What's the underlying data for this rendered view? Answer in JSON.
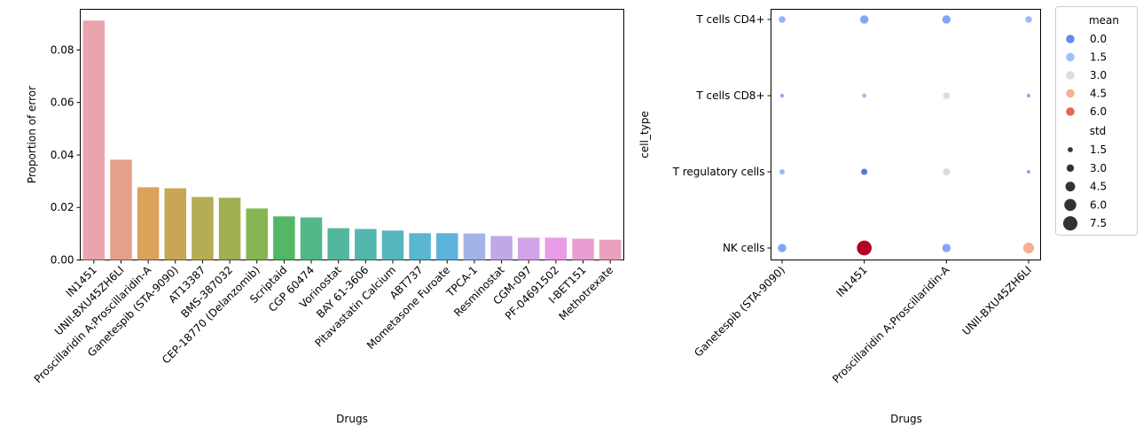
{
  "chart_data": [
    {
      "type": "bar",
      "xlabel": "Drugs",
      "ylabel": "Proportion of error",
      "ylim": [
        0,
        0.0955
      ],
      "yticks": [
        "0.00",
        "0.02",
        "0.04",
        "0.06",
        "0.08"
      ],
      "categories": [
        "IN1451",
        "UNII-BXU45ZH6LI",
        "Proscillaridin A;Proscillaridin-A",
        "Ganetespib (STA-9090)",
        "AT13387",
        "BMS-387032",
        "CEP-18770 (Delanzomib)",
        "Scriptaid",
        "CGP 60474",
        "Vorinostat",
        "BAY 61-3606",
        "Pitavastatin Calcium",
        "ABT737",
        "Mometasone Furoate",
        "TPCA-1",
        "Resminostat",
        "CGM-097",
        "PF-04691502",
        "I-BET151",
        "Methotrexate"
      ],
      "values": [
        0.0912,
        0.0382,
        0.0277,
        0.0273,
        0.024,
        0.0237,
        0.0196,
        0.0166,
        0.0162,
        0.0121,
        0.0118,
        0.0112,
        0.0102,
        0.0102,
        0.0101,
        0.0091,
        0.0085,
        0.0085,
        0.0081,
        0.0077
      ],
      "colors": [
        "#eaa4ae",
        "#e6a08a",
        "#dba25a",
        "#c9a655",
        "#b5ad53",
        "#a1ae51",
        "#88b553",
        "#52b866",
        "#53b889",
        "#53b79e",
        "#54b6ad",
        "#56b6bd",
        "#5bb6d1",
        "#5db3dc",
        "#a2b4e7",
        "#bfa8e7",
        "#d3a3ea",
        "#e89be6",
        "#e99ed2",
        "#e9a1bf"
      ]
    },
    {
      "type": "scatter",
      "xlabel": "Drugs",
      "ylabel": "cell_type",
      "categories": [
        "Ganetespib (STA-9090)",
        "IN1451",
        "Proscillaridin A;Proscillaridin-A",
        "UNII-BXU45ZH6LI"
      ],
      "cell_types": [
        "T cells CD4+",
        "T cells CD8+",
        "T regulatory cells",
        "NK cells"
      ],
      "points": [
        {
          "x": "Ganetespib (STA-9090)",
          "y": "T cells CD4+",
          "mean": 1.2,
          "std": 2.9
        },
        {
          "x": "IN1451",
          "y": "T cells CD4+",
          "mean": 0.8,
          "std": 4.0
        },
        {
          "x": "Proscillaridin A;Proscillaridin-A",
          "y": "T cells CD4+",
          "mean": 0.8,
          "std": 4.0
        },
        {
          "x": "UNII-BXU45ZH6LI",
          "y": "T cells CD4+",
          "mean": 1.4,
          "std": 2.9
        },
        {
          "x": "Ganetespib (STA-9090)",
          "y": "T cells CD8+",
          "mean": 0.9,
          "std": 0.9
        },
        {
          "x": "IN1451",
          "y": "T cells CD8+",
          "mean": 1.5,
          "std": 1.4
        },
        {
          "x": "Proscillaridin A;Proscillaridin-A",
          "y": "T cells CD8+",
          "mean": 3.0,
          "std": 2.9
        },
        {
          "x": "UNII-BXU45ZH6LI",
          "y": "T cells CD8+",
          "mean": 0.9,
          "std": 0.9
        },
        {
          "x": "Ganetespib (STA-9090)",
          "y": "T regulatory cells",
          "mean": 1.3,
          "std": 1.9
        },
        {
          "x": "IN1451",
          "y": "T regulatory cells",
          "mean": -0.3,
          "std": 2.6
        },
        {
          "x": "Proscillaridin A;Proscillaridin-A",
          "y": "T regulatory cells",
          "mean": 3.0,
          "std": 3.2
        },
        {
          "x": "UNII-BXU45ZH6LI",
          "y": "T regulatory cells",
          "mean": 0.8,
          "std": 0.9
        },
        {
          "x": "Ganetespib (STA-9090)",
          "y": "NK cells",
          "mean": 0.8,
          "std": 4.0
        },
        {
          "x": "IN1451",
          "y": "NK cells",
          "mean": 7.0,
          "std": 8.2
        },
        {
          "x": "Proscillaridin A;Proscillaridin-A",
          "y": "NK cells",
          "mean": 0.8,
          "std": 4.0
        },
        {
          "x": "UNII-BXU45ZH6LI",
          "y": "NK cells",
          "mean": 4.5,
          "std": 5.6
        }
      ],
      "legend": {
        "placement": "outside upper right",
        "hue_title": "mean",
        "hue_entries": [
          {
            "label": "0.0",
            "color": "#6788ee"
          },
          {
            "label": "1.5",
            "color": "#9ebeff"
          },
          {
            "label": "3.0",
            "color": "#dddcdc"
          },
          {
            "label": "4.5",
            "color": "#f7b093"
          },
          {
            "label": "6.0",
            "color": "#e16852"
          }
        ],
        "size_title": "std",
        "size_entries": [
          "1.5",
          "3.0",
          "4.5",
          "6.0",
          "7.5"
        ]
      }
    }
  ]
}
